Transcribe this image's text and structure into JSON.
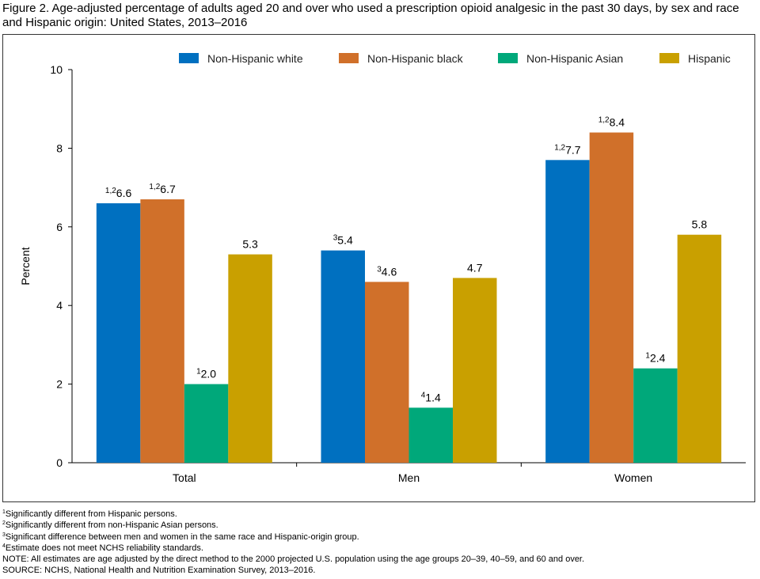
{
  "title": "Figure 2. Age-adjusted percentage of adults aged 20 and over who used a prescription opioid analgesic in the past 30 days, by sex and race and Hispanic origin: United States, 2013–2016",
  "chart_data": {
    "type": "bar",
    "categories": [
      "Total",
      "Men",
      "Women"
    ],
    "series": [
      {
        "name": "Non-Hispanic white",
        "color": "#0070C0",
        "values": [
          6.6,
          5.4,
          7.7
        ],
        "superscripts": [
          "1,2",
          "3",
          "1,2"
        ]
      },
      {
        "name": "Non-Hispanic black",
        "color": "#D0702A",
        "values": [
          6.7,
          4.6,
          8.4
        ],
        "superscripts": [
          "1,2",
          "3",
          "1,2"
        ]
      },
      {
        "name": "Non-Hispanic Asian",
        "color": "#00A87A",
        "values": [
          2.0,
          1.4,
          2.4
        ],
        "superscripts": [
          "1",
          "4",
          "1"
        ]
      },
      {
        "name": "Hispanic",
        "color": "#C9A000",
        "values": [
          5.3,
          4.7,
          5.8
        ],
        "superscripts": [
          "",
          "",
          ""
        ]
      }
    ],
    "ylabel": "Percent",
    "xlabel": "",
    "ylim": [
      0,
      10
    ],
    "yticks": [
      0,
      2,
      4,
      6,
      8,
      10
    ],
    "legend": "top",
    "grid": false
  },
  "footnotes": [
    {
      "mark": "1",
      "text": "Significantly different from Hispanic persons."
    },
    {
      "mark": "2",
      "text": "Significantly different from non-Hispanic Asian persons."
    },
    {
      "mark": "3",
      "text": "Significant difference between men and women in the same race and Hispanic-origin group."
    },
    {
      "mark": "4",
      "text": "Estimate does not meet NCHS reliability standards."
    },
    {
      "mark": "",
      "text": "NOTE: All estimates are age adjusted by the direct method to the 2000 projected U.S. population using the age groups 20–39, 40–59, and 60 and over."
    },
    {
      "mark": "",
      "text": "SOURCE: NCHS, National Health and Nutrition Examination Survey, 2013–2016."
    }
  ]
}
